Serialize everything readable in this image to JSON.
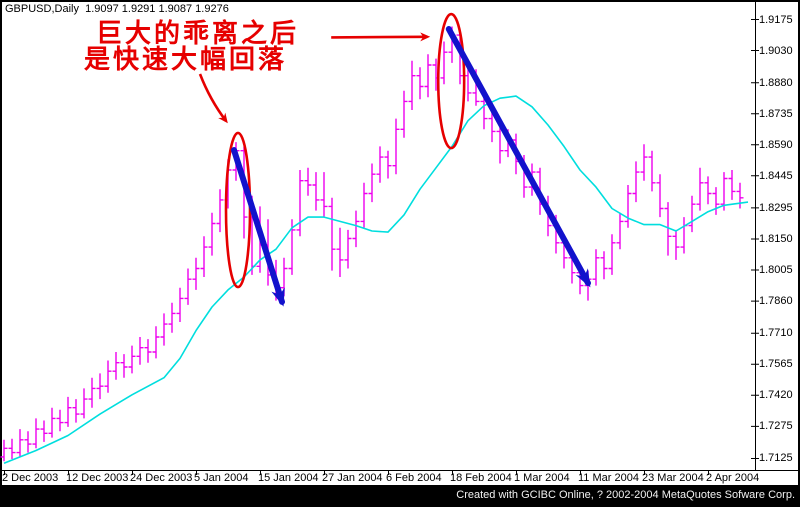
{
  "header": {
    "symbol_line": "GBPUSD,Daily  1.9097 1.9291 1.9087 1.9276"
  },
  "annotation": {
    "line1": "巨大的乖离之后",
    "line2": "是快速大幅回落"
  },
  "footer": {
    "watermark": "Created with GCIBC Online, ? 2002-2004 MetaQuotes Sofware Corp."
  },
  "price_axis": {
    "labels": [
      "1.9175",
      "1.9030",
      "1.8880",
      "1.8735",
      "1.8590",
      "1.8445",
      "1.8295",
      "1.8150",
      "1.8005",
      "1.7860",
      "1.7710",
      "1.7565",
      "1.7420",
      "1.7275",
      "1.7125"
    ]
  },
  "date_axis": {
    "labels": [
      "2 Dec 2003",
      "12 Dec 2003",
      "24 Dec 2003",
      "5 Jan 2004",
      "15 Jan 2004",
      "27 Jan 2004",
      "6 Feb 2004",
      "18 Feb 2004",
      "1 Mar 2004",
      "11 Mar 2004",
      "23 Mar 2004",
      "2 Apr 2004"
    ]
  },
  "colors": {
    "bar": "#ee00ee",
    "ma": "#00dede",
    "annotation_red": "#e60000",
    "arrow_blue": "#1212cc",
    "axis": "#000000",
    "background": "#ffffff",
    "frame": "#000000",
    "footer_text": "#f2f2f2",
    "label_text": "#000000"
  },
  "chart_data": {
    "type": "ohlc-bar",
    "symbol": "GBPUSD",
    "timeframe": "Daily",
    "ohlc_header": [
      1.9097,
      1.9291,
      1.9087,
      1.9276
    ],
    "ylim": [
      1.7125,
      1.9175
    ],
    "y_ticks": [
      1.9175,
      1.903,
      1.888,
      1.8735,
      1.859,
      1.8445,
      1.8295,
      1.815,
      1.8005,
      1.786,
      1.771,
      1.7565,
      1.742,
      1.7275,
      1.7125
    ],
    "x_tick_labels": [
      "2 Dec 2003",
      "12 Dec 2003",
      "24 Dec 2003",
      "5 Jan 2004",
      "15 Jan 2004",
      "27 Jan 2004",
      "6 Feb 2004",
      "18 Feb 2004",
      "1 Mar 2004",
      "11 Mar 2004",
      "23 Mar 2004",
      "2 Apr 2004"
    ],
    "bars_per_x_tick": 8,
    "grid": false,
    "legend": "none",
    "bars": [
      [
        1.713,
        1.721,
        1.711,
        1.717
      ],
      [
        1.717,
        1.7215,
        1.712,
        1.715
      ],
      [
        1.715,
        1.726,
        1.713,
        1.721
      ],
      [
        1.721,
        1.725,
        1.715,
        1.719
      ],
      [
        1.719,
        1.731,
        1.717,
        1.726
      ],
      [
        1.726,
        1.73,
        1.72,
        1.724
      ],
      [
        1.724,
        1.736,
        1.722,
        1.731
      ],
      [
        1.731,
        1.735,
        1.725,
        1.729
      ],
      [
        1.729,
        1.741,
        1.727,
        1.736
      ],
      [
        1.736,
        1.74,
        1.729,
        1.733
      ],
      [
        1.733,
        1.745,
        1.731,
        1.74
      ],
      [
        1.74,
        1.75,
        1.736,
        1.745
      ],
      [
        1.745,
        1.752,
        1.74,
        1.746
      ],
      [
        1.746,
        1.758,
        1.743,
        1.753
      ],
      [
        1.753,
        1.762,
        1.749,
        1.757
      ],
      [
        1.757,
        1.761,
        1.75,
        1.755
      ],
      [
        1.755,
        1.765,
        1.752,
        1.76
      ],
      [
        1.76,
        1.769,
        1.756,
        1.764
      ],
      [
        1.764,
        1.768,
        1.757,
        1.762
      ],
      [
        1.762,
        1.774,
        1.759,
        1.769
      ],
      [
        1.769,
        1.78,
        1.765,
        1.775
      ],
      [
        1.775,
        1.785,
        1.771,
        1.78
      ],
      [
        1.78,
        1.792,
        1.776,
        1.787
      ],
      [
        1.787,
        1.801,
        1.784,
        1.796
      ],
      [
        1.796,
        1.806,
        1.791,
        1.801
      ],
      [
        1.801,
        1.816,
        1.797,
        1.811
      ],
      [
        1.811,
        1.827,
        1.807,
        1.822
      ],
      [
        1.822,
        1.838,
        1.818,
        1.833
      ],
      [
        1.833,
        1.852,
        1.829,
        1.847
      ],
      [
        1.847,
        1.86,
        1.842,
        1.856
      ],
      [
        1.856,
        1.858,
        1.815,
        1.825
      ],
      [
        1.825,
        1.835,
        1.798,
        1.802
      ],
      [
        1.802,
        1.83,
        1.799,
        1.812
      ],
      [
        1.812,
        1.824,
        1.793,
        1.798
      ],
      [
        1.798,
        1.805,
        1.786,
        1.792
      ],
      [
        1.792,
        1.806,
        1.788,
        1.801
      ],
      [
        1.801,
        1.824,
        1.798,
        1.819
      ],
      [
        1.819,
        1.847,
        1.816,
        1.842
      ],
      [
        1.842,
        1.848,
        1.835,
        1.84
      ],
      [
        1.84,
        1.846,
        1.828,
        1.833
      ],
      [
        1.833,
        1.846,
        1.825,
        1.83
      ],
      [
        1.83,
        1.834,
        1.8,
        1.81
      ],
      [
        1.81,
        1.82,
        1.797,
        1.805
      ],
      [
        1.805,
        1.819,
        1.801,
        1.815
      ],
      [
        1.815,
        1.828,
        1.811,
        1.823
      ],
      [
        1.823,
        1.841,
        1.82,
        1.836
      ],
      [
        1.836,
        1.85,
        1.832,
        1.845
      ],
      [
        1.845,
        1.858,
        1.841,
        1.853
      ],
      [
        1.853,
        1.856,
        1.843,
        1.849
      ],
      [
        1.849,
        1.871,
        1.845,
        1.866
      ],
      [
        1.866,
        1.884,
        1.862,
        1.879
      ],
      [
        1.879,
        1.898,
        1.875,
        1.891
      ],
      [
        1.891,
        1.895,
        1.88,
        1.886
      ],
      [
        1.886,
        1.901,
        1.881,
        1.896
      ],
      [
        1.896,
        1.899,
        1.884,
        1.89
      ],
      [
        1.89,
        1.907,
        1.887,
        1.902
      ],
      [
        1.902,
        1.914,
        1.897,
        1.91
      ],
      [
        1.91,
        1.912,
        1.887,
        1.891
      ],
      [
        1.891,
        1.896,
        1.879,
        1.883
      ],
      [
        1.883,
        1.894,
        1.877,
        1.879
      ],
      [
        1.879,
        1.883,
        1.866,
        1.871
      ],
      [
        1.871,
        1.877,
        1.86,
        1.865
      ],
      [
        1.865,
        1.869,
        1.85,
        1.856
      ],
      [
        1.856,
        1.866,
        1.853,
        1.861
      ],
      [
        1.861,
        1.864,
        1.845,
        1.851
      ],
      [
        1.851,
        1.854,
        1.834,
        1.839
      ],
      [
        1.839,
        1.85,
        1.835,
        1.846
      ],
      [
        1.846,
        1.848,
        1.826,
        1.831
      ],
      [
        1.831,
        1.835,
        1.816,
        1.821
      ],
      [
        1.821,
        1.826,
        1.808,
        1.813
      ],
      [
        1.813,
        1.817,
        1.801,
        1.806
      ],
      [
        1.806,
        1.81,
        1.794,
        1.799
      ],
      [
        1.799,
        1.802,
        1.789,
        1.793
      ],
      [
        1.793,
        1.8,
        1.786,
        1.796
      ],
      [
        1.796,
        1.81,
        1.793,
        1.806
      ],
      [
        1.806,
        1.809,
        1.796,
        1.801
      ],
      [
        1.801,
        1.817,
        1.798,
        1.813
      ],
      [
        1.813,
        1.827,
        1.81,
        1.823
      ],
      [
        1.823,
        1.84,
        1.82,
        1.836
      ],
      [
        1.836,
        1.851,
        1.832,
        1.846
      ],
      [
        1.846,
        1.859,
        1.842,
        1.853
      ],
      [
        1.853,
        1.856,
        1.837,
        1.841
      ],
      [
        1.841,
        1.845,
        1.825,
        1.829
      ],
      [
        1.829,
        1.832,
        1.807,
        1.816
      ],
      [
        1.816,
        1.819,
        1.805,
        1.811
      ],
      [
        1.811,
        1.825,
        1.808,
        1.821
      ],
      [
        1.821,
        1.835,
        1.818,
        1.831
      ],
      [
        1.831,
        1.848,
        1.828,
        1.841
      ],
      [
        1.841,
        1.844,
        1.831,
        1.836
      ],
      [
        1.836,
        1.839,
        1.826,
        1.831
      ],
      [
        1.831,
        1.846,
        1.828,
        1.843
      ],
      [
        1.843,
        1.847,
        1.833,
        1.837
      ],
      [
        1.837,
        1.841,
        1.829,
        1.834
      ]
    ],
    "ma_points": [
      [
        0,
        1.71
      ],
      [
        4,
        1.716
      ],
      [
        8,
        1.723
      ],
      [
        12,
        1.733
      ],
      [
        16,
        1.742
      ],
      [
        20,
        1.75
      ],
      [
        22,
        1.759
      ],
      [
        24,
        1.772
      ],
      [
        26,
        1.783
      ],
      [
        28,
        1.791
      ],
      [
        30,
        1.797
      ],
      [
        31,
        1.801
      ],
      [
        32,
        1.805
      ],
      [
        34,
        1.81
      ],
      [
        36,
        1.82
      ],
      [
        38,
        1.825
      ],
      [
        40,
        1.825
      ],
      [
        42,
        1.823
      ],
      [
        44,
        1.821
      ],
      [
        46,
        1.8185
      ],
      [
        48,
        1.818
      ],
      [
        50,
        1.826
      ],
      [
        52,
        1.838
      ],
      [
        54,
        1.848
      ],
      [
        56,
        1.858
      ],
      [
        58,
        1.87
      ],
      [
        60,
        1.877
      ],
      [
        62,
        1.8805
      ],
      [
        64,
        1.8815
      ],
      [
        66,
        1.8765
      ],
      [
        68,
        1.868
      ],
      [
        70,
        1.858
      ],
      [
        72,
        1.847
      ],
      [
        74,
        1.839
      ],
      [
        76,
        1.829
      ],
      [
        78,
        1.8245
      ],
      [
        80,
        1.8215
      ],
      [
        82,
        1.8215
      ],
      [
        84,
        1.8185
      ],
      [
        86,
        1.823
      ],
      [
        88,
        1.8275
      ],
      [
        90,
        1.8305
      ],
      [
        93,
        1.832
      ]
    ],
    "annotations": {
      "ellipses": [
        {
          "name": "divergence-ellipse-1",
          "center_bar": 29.25,
          "center_price": 1.8283,
          "rx_bars": 1.5,
          "ry_price": 0.036
        },
        {
          "name": "divergence-ellipse-2",
          "center_bar": 55.9,
          "center_price": 1.8885,
          "rx_bars": 1.62,
          "ry_price": 0.0313
        }
      ],
      "blue_arrows": [
        {
          "name": "decline-arrow-1",
          "from": [
            28.75,
            1.8563
          ],
          "to": [
            34.75,
            1.7854
          ]
        },
        {
          "name": "decline-arrow-2",
          "from": [
            55.6,
            1.9128
          ],
          "to": [
            73.0,
            1.7942
          ]
        }
      ],
      "red_arrows": [
        {
          "name": "pointer-arrow-diagonal",
          "from": [
            24.5,
            1.8918
          ],
          "curve": [
            25.75,
            1.8797
          ],
          "to": [
            27.75,
            1.8699
          ]
        },
        {
          "name": "pointer-arrow-horizontal",
          "from": [
            40.9,
            1.9089
          ],
          "curve": null,
          "to": [
            52.9,
            1.9092
          ]
        }
      ]
    }
  }
}
